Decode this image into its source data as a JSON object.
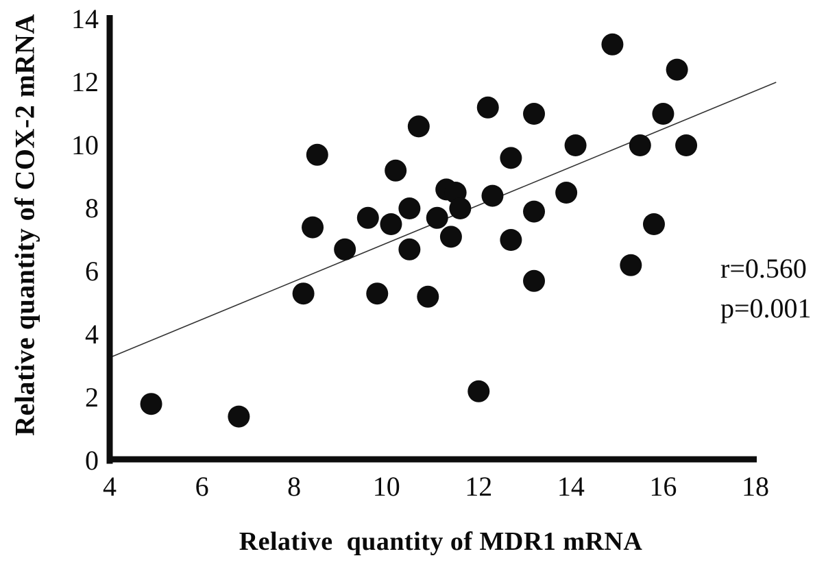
{
  "chart_data": {
    "type": "scatter",
    "title": "",
    "xlabel": "Relative  quantity of MDR1 mRNA",
    "ylabel": "Relative quantity of COX-2 mRNA",
    "xlim": [
      4,
      18
    ],
    "ylim": [
      0,
      14
    ],
    "x_ticks": [
      "4",
      "6",
      "8",
      "10",
      "12",
      "14",
      "16",
      "18"
    ],
    "x_tick_values": [
      4,
      6,
      8,
      10,
      12,
      14,
      16,
      18
    ],
    "y_ticks": [
      "0",
      "2",
      "4",
      "6",
      "8",
      "10",
      "12",
      "14"
    ],
    "y_tick_values": [
      0,
      2,
      4,
      6,
      8,
      10,
      12,
      14
    ],
    "grid": false,
    "legend": false,
    "points": [
      [
        4.9,
        1.8
      ],
      [
        6.8,
        1.4
      ],
      [
        8.2,
        5.3
      ],
      [
        8.4,
        7.4
      ],
      [
        8.5,
        9.7
      ],
      [
        9.1,
        6.7
      ],
      [
        9.6,
        7.7
      ],
      [
        9.8,
        5.3
      ],
      [
        10.1,
        7.5
      ],
      [
        10.2,
        9.2
      ],
      [
        10.5,
        6.7
      ],
      [
        10.5,
        8.0
      ],
      [
        10.7,
        10.6
      ],
      [
        10.9,
        5.2
      ],
      [
        11.1,
        7.7
      ],
      [
        11.3,
        8.6
      ],
      [
        11.5,
        8.5
      ],
      [
        11.4,
        7.1
      ],
      [
        11.6,
        8.0
      ],
      [
        12.0,
        2.2
      ],
      [
        12.2,
        11.2
      ],
      [
        12.3,
        8.4
      ],
      [
        12.7,
        9.6
      ],
      [
        12.7,
        7.0
      ],
      [
        13.2,
        11.0
      ],
      [
        13.2,
        7.9
      ],
      [
        13.2,
        5.7
      ],
      [
        13.9,
        8.5
      ],
      [
        14.1,
        10.0
      ],
      [
        14.9,
        13.2
      ],
      [
        15.3,
        6.2
      ],
      [
        15.5,
        10.0
      ],
      [
        15.8,
        7.5
      ],
      [
        16.0,
        11.0
      ],
      [
        16.3,
        12.4
      ],
      [
        16.5,
        10.0
      ]
    ],
    "trend_line": {
      "x1": 4.05,
      "y1": 3.3,
      "x2": 18.45,
      "y2": 12.0
    },
    "annotations": [
      {
        "text": "r=0.560"
      },
      {
        "text": "p=0.001"
      }
    ],
    "marker": {
      "shape": "circle",
      "color": "#0d0d0d",
      "radius_px": 16
    },
    "axis_color": "#0d0d0d",
    "trend_line_color": "#333333"
  }
}
